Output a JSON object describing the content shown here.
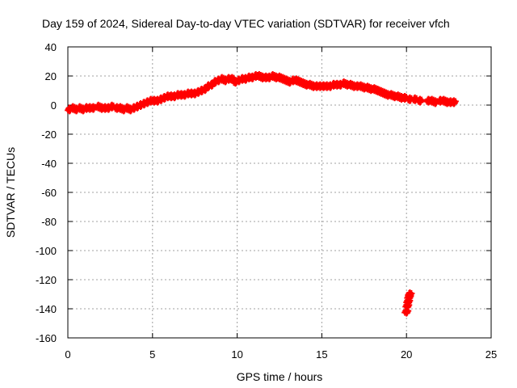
{
  "chart_data": {
    "type": "scatter",
    "title": "Day 159 of 2024, Sidereal Day-to-day VTEC variation (SDTVAR) for receiver vfch",
    "xlabel": "GPS time / hours",
    "ylabel": "SDTVAR / TECUs",
    "xlim": [
      0,
      25
    ],
    "ylim": [
      -160,
      40
    ],
    "xticks": [
      0,
      5,
      10,
      15,
      20,
      25
    ],
    "yticks": [
      -160,
      -140,
      -120,
      -100,
      -80,
      -60,
      -40,
      -20,
      0,
      20,
      40
    ],
    "grid": true,
    "marker": "+",
    "series_color": "#ff0000",
    "series": [
      {
        "name": "SDTVAR",
        "x": [
          0.1,
          0.3,
          0.5,
          0.7,
          0.9,
          1.1,
          1.3,
          1.5,
          1.8,
          2.0,
          2.2,
          2.4,
          2.6,
          2.9,
          3.1,
          3.3,
          3.5,
          3.7,
          3.9,
          4.1,
          4.3,
          4.5,
          4.7,
          4.9,
          5.1,
          5.3,
          5.5,
          5.7,
          5.9,
          6.1,
          6.3,
          6.5,
          6.7,
          6.9,
          7.1,
          7.3,
          7.5,
          7.7,
          7.9,
          8.1,
          8.3,
          8.5,
          8.7,
          8.9,
          9.1,
          9.3,
          9.5,
          9.7,
          9.9,
          10.1,
          10.3,
          10.5,
          10.7,
          10.9,
          11.1,
          11.3,
          11.5,
          11.7,
          11.9,
          12.1,
          12.3,
          12.5,
          12.7,
          12.9,
          13.1,
          13.3,
          13.5,
          13.7,
          13.9,
          14.1,
          14.3,
          14.5,
          14.7,
          14.9,
          15.1,
          15.3,
          15.5,
          15.7,
          15.9,
          16.1,
          16.3,
          16.5,
          16.7,
          16.9,
          17.1,
          17.3,
          17.5,
          17.7,
          17.9,
          18.1,
          18.3,
          18.5,
          18.7,
          18.9,
          19.1,
          19.3,
          19.5,
          19.7,
          19.9,
          20.2,
          20.5,
          20.8,
          21.3,
          21.5,
          21.7,
          22.0,
          22.2,
          22.4,
          22.6,
          22.8,
          20.0,
          20.05,
          20.1,
          20.15,
          20.2
        ],
        "y": [
          -3,
          -2,
          -3,
          -2,
          -3,
          -2,
          -2,
          -2,
          -1,
          -2,
          -2,
          -2,
          -1,
          -2,
          -2,
          -3,
          -2,
          -3,
          -2,
          -1,
          0,
          1,
          2,
          3,
          3,
          3,
          4,
          5,
          6,
          6,
          6,
          7,
          7,
          7,
          8,
          8,
          8,
          9,
          10,
          11,
          13,
          14,
          16,
          17,
          18,
          17,
          18,
          18,
          16,
          17,
          18,
          18,
          19,
          19,
          20,
          20,
          19,
          19,
          19,
          20,
          19,
          19,
          18,
          17,
          16,
          17,
          17,
          16,
          15,
          14,
          14,
          13,
          13,
          13,
          13,
          13,
          13,
          14,
          14,
          14,
          15,
          14,
          14,
          13,
          13,
          13,
          12,
          12,
          11,
          11,
          10,
          9,
          8,
          7,
          7,
          6,
          6,
          5,
          5,
          4,
          4,
          3,
          3,
          3,
          2,
          3,
          3,
          2,
          2,
          2,
          -142,
          -138,
          -135,
          -132,
          -130
        ]
      }
    ]
  }
}
